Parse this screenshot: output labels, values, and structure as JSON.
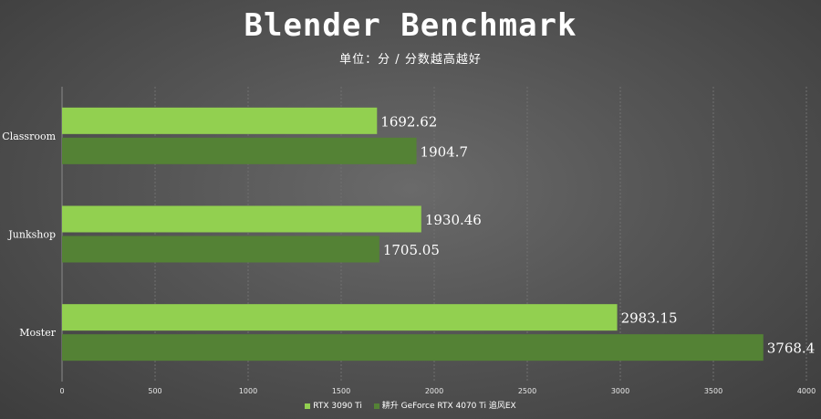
{
  "chart_data": {
    "type": "bar",
    "orientation": "horizontal",
    "title": "Blender Benchmark",
    "subtitle": "单位：分 / 分数越高越好",
    "categories": [
      "Classroom",
      "Junkshop",
      "Moster"
    ],
    "series": [
      {
        "name": "RTX 3090 Ti",
        "color": "#92d050",
        "values": [
          1692.62,
          1930.46,
          2983.15
        ]
      },
      {
        "name": "耕升 GeForce RTX 4070 Ti 追风EX",
        "color": "#548235",
        "values": [
          1904.7,
          1705.05,
          3768.4
        ]
      }
    ],
    "value_labels": [
      [
        "1692.62",
        "1930.46",
        "2983.15"
      ],
      [
        "1904.7",
        "1705.05",
        "3768.4"
      ]
    ],
    "xlim": [
      0,
      4000
    ],
    "xticks": [
      0,
      500,
      1000,
      1500,
      2000,
      2500,
      3000,
      3500,
      4000
    ],
    "grid": true,
    "legend_position": "bottom"
  }
}
